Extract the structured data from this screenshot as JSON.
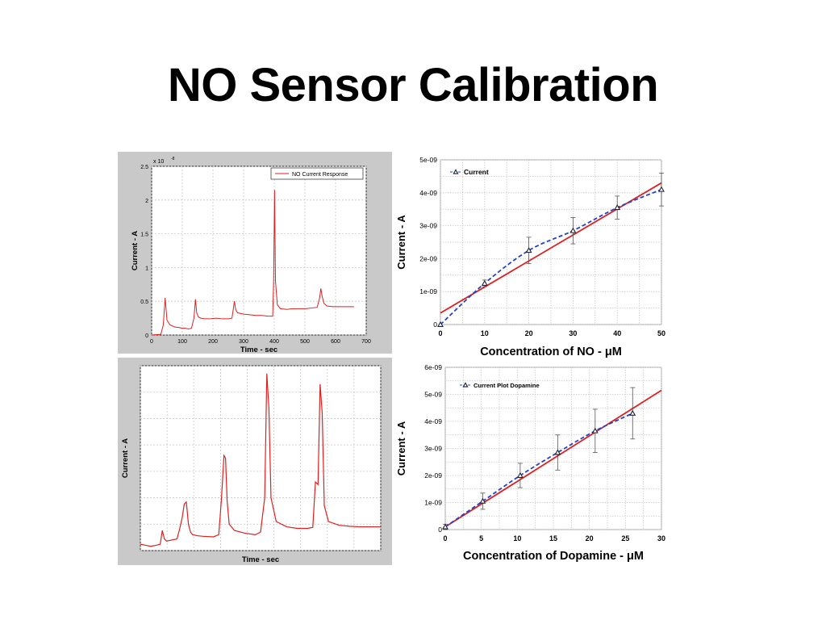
{
  "slide": {
    "title": "NO Sensor Calibration"
  },
  "colors": {
    "red": "#e02020",
    "blue": "#2244cc",
    "grid": "#c8c8c8",
    "panel_bg": "#c9c9c9"
  },
  "chart_data": [
    {
      "id": "no-time-response",
      "type": "line",
      "xlabel": "Time  - sec",
      "ylabel": "Current  - A",
      "y_multiplier": "x 10",
      "y_multiplier_exp": "-8",
      "xlim": [
        0,
        700
      ],
      "ylim": [
        0,
        2.5
      ],
      "xticks": [
        "0",
        "100",
        "200",
        "300",
        "400",
        "500",
        "600",
        "700"
      ],
      "yticks": [
        "0",
        "0.5",
        "1",
        "1.5",
        "2",
        "2.5"
      ],
      "legend": "NO Current Response",
      "legend_position": "top-right",
      "grid": true,
      "series": [
        {
          "name": "NO Current Response",
          "x": [
            0,
            30,
            38,
            44,
            50,
            60,
            75,
            90,
            100,
            110,
            120,
            130,
            138,
            143,
            147,
            152,
            160,
            175,
            190,
            210,
            230,
            250,
            262,
            270,
            274,
            280,
            300,
            320,
            340,
            360,
            380,
            395,
            398,
            401,
            404,
            410,
            420,
            440,
            460,
            480,
            500,
            520,
            540,
            548,
            552,
            556,
            562,
            572,
            590,
            610,
            630,
            650,
            660
          ],
          "y": [
            0,
            0.01,
            0.15,
            0.55,
            0.22,
            0.15,
            0.12,
            0.11,
            0.1,
            0.1,
            0.09,
            0.1,
            0.25,
            0.53,
            0.33,
            0.27,
            0.25,
            0.24,
            0.24,
            0.25,
            0.24,
            0.24,
            0.25,
            0.5,
            0.38,
            0.33,
            0.31,
            0.3,
            0.29,
            0.29,
            0.28,
            0.28,
            0.8,
            2.15,
            0.8,
            0.45,
            0.39,
            0.38,
            0.39,
            0.39,
            0.39,
            0.4,
            0.41,
            0.55,
            0.69,
            0.58,
            0.47,
            0.43,
            0.42,
            0.42,
            0.42,
            0.42,
            0.42
          ]
        }
      ]
    },
    {
      "id": "no-calibration",
      "type": "line",
      "xlabel": "Concentration of NO - μM",
      "ylabel": "Current  - A",
      "xlim": [
        0,
        50
      ],
      "ylim": [
        0,
        5e-09
      ],
      "xticks": [
        "0",
        "10",
        "20",
        "30",
        "40",
        "50"
      ],
      "yticks": [
        "0",
        "1e-09",
        "2e-09",
        "3e-09",
        "4e-09",
        "5e-09"
      ],
      "legend": "Current",
      "legend_position": "top-left",
      "grid": true,
      "series": [
        {
          "name": "Current",
          "x": [
            0,
            10,
            20,
            30,
            40,
            50
          ],
          "y": [
            0,
            1.25e-09,
            2.25e-09,
            2.85e-09,
            3.55e-09,
            4.1e-09
          ],
          "error": [
            0,
            1e-10,
            4e-10,
            4e-10,
            3.5e-10,
            5e-10
          ]
        }
      ],
      "fit_line": {
        "x": [
          0,
          50
        ],
        "y": [
          3.5e-10,
          4.3e-09
        ]
      }
    },
    {
      "id": "dopamine-time-response",
      "type": "line",
      "xlabel": "Time - sec",
      "ylabel": "Current - A",
      "grid": true,
      "xlim": [
        0,
        460
      ],
      "ylim": [
        0,
        3.5
      ],
      "series": [
        {
          "x": [
            0,
            10,
            20,
            30,
            38,
            42,
            46,
            50,
            60,
            70,
            75,
            80,
            84,
            88,
            92,
            96,
            100,
            110,
            120,
            140,
            150,
            155,
            160,
            163,
            166,
            170,
            180,
            200,
            220,
            230,
            238,
            242,
            246,
            250,
            260,
            280,
            300,
            320,
            330,
            335,
            340,
            344,
            348,
            352,
            360,
            380,
            400,
            420,
            440,
            460
          ],
          "y": [
            0.12,
            0.1,
            0.08,
            0.1,
            0.12,
            0.38,
            0.22,
            0.18,
            0.2,
            0.22,
            0.4,
            0.62,
            0.88,
            0.92,
            0.5,
            0.35,
            0.3,
            0.28,
            0.27,
            0.26,
            0.3,
            0.95,
            1.8,
            1.75,
            0.95,
            0.5,
            0.38,
            0.33,
            0.3,
            0.35,
            1.0,
            3.35,
            2.7,
            1.0,
            0.55,
            0.45,
            0.42,
            0.42,
            0.44,
            1.3,
            1.25,
            3.15,
            2.6,
            0.85,
            0.55,
            0.48,
            0.46,
            0.45,
            0.45,
            0.45
          ]
        }
      ]
    },
    {
      "id": "dopamine-calibration",
      "type": "line",
      "xlabel": "Concentration of Dopamine - μM",
      "ylabel": "Current - A",
      "xlim": [
        0,
        30
      ],
      "ylim": [
        0,
        6e-09
      ],
      "xticks": [
        "0",
        "5",
        "10",
        "15",
        "20",
        "25",
        "30"
      ],
      "yticks": [
        "0",
        "1e-09",
        "2e-09",
        "3e-09",
        "4e-09",
        "5e-09",
        "6e-09"
      ],
      "legend": "Current Plot Dopamine",
      "legend_position": "top-left",
      "grid": true,
      "series": [
        {
          "name": "Current Plot Dopamine",
          "x": [
            0,
            5.2,
            10.4,
            15.6,
            20.8,
            26
          ],
          "y": [
            1e-10,
            1.05e-09,
            2e-09,
            2.85e-09,
            3.65e-09,
            4.3e-09
          ],
          "error": [
            1e-10,
            3e-10,
            4.5e-10,
            6.5e-10,
            8e-10,
            9.5e-10
          ]
        }
      ],
      "fit_line": {
        "x": [
          0,
          30
        ],
        "y": [
          1e-10,
          5.15e-09
        ]
      }
    }
  ]
}
